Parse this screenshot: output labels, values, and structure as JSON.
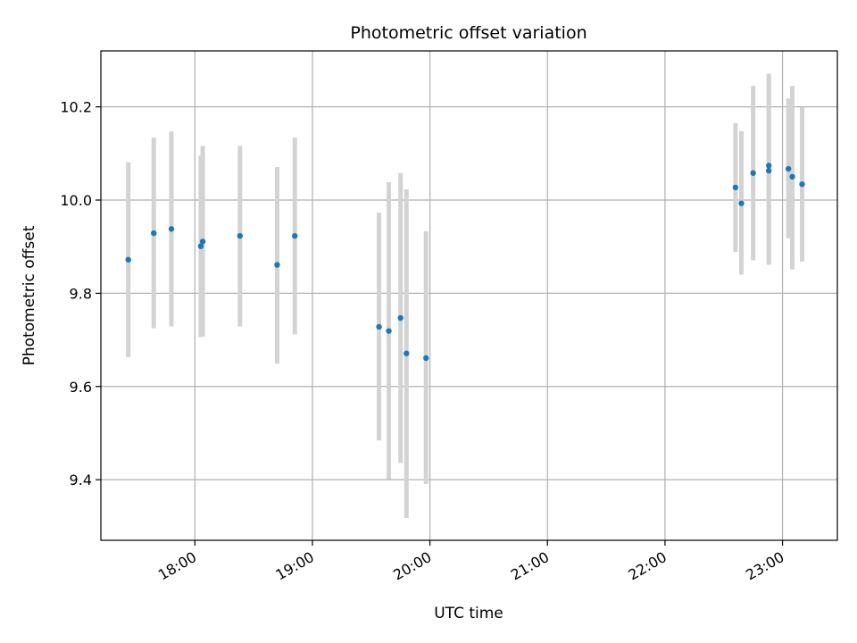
{
  "chart_data": {
    "type": "scatter",
    "title": "Photometric offset variation",
    "xlabel": "UTC time",
    "ylabel": "Photometric offset",
    "xlim": [
      "17:12",
      "23:28"
    ],
    "ylim": [
      9.27,
      10.32
    ],
    "x_ticks": [
      "18:00",
      "19:00",
      "20:00",
      "21:00",
      "22:00",
      "23:00"
    ],
    "y_ticks": [
      9.4,
      9.6,
      9.8,
      10.0,
      10.2
    ],
    "y_tick_labels": [
      "9.4",
      "9.6",
      "9.8",
      "10.0",
      "10.2"
    ],
    "grid": true,
    "x_tick_rotation_deg": 30,
    "colors": {
      "points": "#1f77b4",
      "errorbars": "#d3d3d3",
      "grid": "#b0b0b0"
    },
    "points": [
      {
        "x": "17:26",
        "y": 9.872,
        "low": 9.663,
        "high": 10.081
      },
      {
        "x": "17:39",
        "y": 9.929,
        "low": 9.725,
        "high": 10.134
      },
      {
        "x": "17:48",
        "y": 9.938,
        "low": 9.729,
        "high": 10.147
      },
      {
        "x": "18:03",
        "y": 9.901,
        "low": 9.706,
        "high": 10.095
      },
      {
        "x": "18:04",
        "y": 9.911,
        "low": 9.707,
        "high": 10.116
      },
      {
        "x": "18:23",
        "y": 9.923,
        "low": 9.729,
        "high": 10.116
      },
      {
        "x": "18:42",
        "y": 9.861,
        "low": 9.649,
        "high": 10.071
      },
      {
        "x": "18:51",
        "y": 9.923,
        "low": 9.712,
        "high": 10.134
      },
      {
        "x": "19:34",
        "y": 9.728,
        "low": 9.484,
        "high": 9.973
      },
      {
        "x": "19:39",
        "y": 9.719,
        "low": 9.401,
        "high": 10.038
      },
      {
        "x": "19:45",
        "y": 9.747,
        "low": 9.436,
        "high": 10.058
      },
      {
        "x": "19:48",
        "y": 9.671,
        "low": 9.318,
        "high": 10.023
      },
      {
        "x": "19:58",
        "y": 9.661,
        "low": 9.391,
        "high": 9.933
      },
      {
        "x": "22:36",
        "y": 10.027,
        "low": 9.889,
        "high": 10.165
      },
      {
        "x": "22:39",
        "y": 9.993,
        "low": 9.84,
        "high": 10.148
      },
      {
        "x": "22:45",
        "y": 10.058,
        "low": 9.871,
        "high": 10.245
      },
      {
        "x": "22:53",
        "y": 10.074,
        "low": 9.861,
        "high": 10.271
      },
      {
        "x": "22:53",
        "y": 10.063,
        "low": 9.863,
        "high": 10.265
      },
      {
        "x": "23:03",
        "y": 10.067,
        "low": 9.918,
        "high": 10.218
      },
      {
        "x": "23:05",
        "y": 10.05,
        "low": 9.851,
        "high": 10.245
      },
      {
        "x": "23:10",
        "y": 10.034,
        "low": 9.868,
        "high": 10.199
      }
    ]
  }
}
